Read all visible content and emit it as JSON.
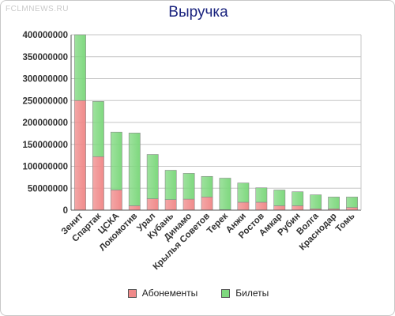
{
  "watermark": "FCLMNEWS.RU",
  "chart_data": {
    "type": "bar",
    "stacked": true,
    "title": "Выручка",
    "categories": [
      "Зенит",
      "Спартак",
      "ЦСКА",
      "Локомотив",
      "Урал",
      "Кубань",
      "Динамо",
      "Крылья Советов",
      "Терек",
      "Анжи",
      "Ростов",
      "Амкар",
      "Рубин",
      "Волга",
      "Краснодар",
      "Томь"
    ],
    "series": [
      {
        "name": "Абонементы",
        "color": "#f08a8a",
        "values": [
          250000000,
          122000000,
          46000000,
          10000000,
          26000000,
          24000000,
          25000000,
          30000000,
          1000000,
          18000000,
          18000000,
          10000000,
          10000000,
          3000000,
          3000000,
          6000000
        ]
      },
      {
        "name": "Билеты",
        "color": "#7ed87e",
        "values": [
          150000000,
          126000000,
          132000000,
          166000000,
          101000000,
          67000000,
          59000000,
          47000000,
          72000000,
          44000000,
          33000000,
          36000000,
          32000000,
          32000000,
          27000000,
          24000000
        ]
      }
    ],
    "ylim": [
      0,
      400000000
    ],
    "yticks": [
      "0",
      "50000000",
      "100000000",
      "150000000",
      "200000000",
      "250000000",
      "300000000",
      "350000000",
      "400000000"
    ],
    "grid": true,
    "legend_position": "bottom"
  }
}
